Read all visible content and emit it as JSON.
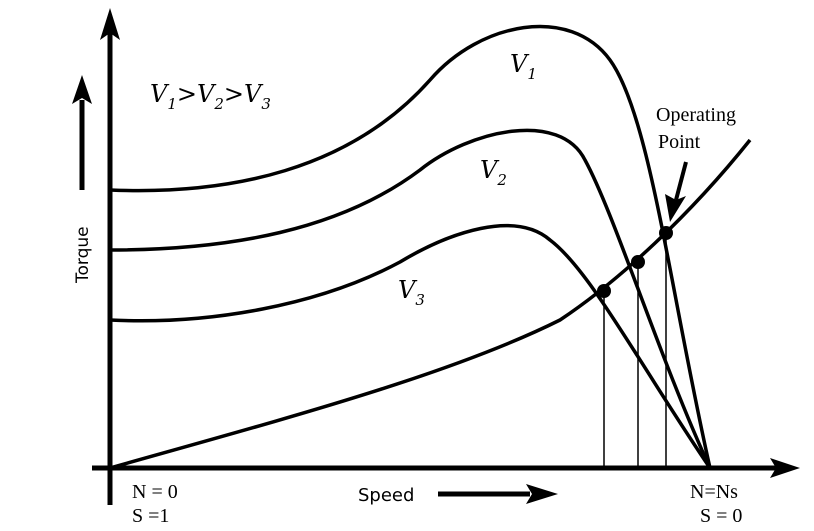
{
  "axes": {
    "y_label": "Torque",
    "x_label": "Speed"
  },
  "legend": {
    "relation": "V1>V2>V3",
    "parts": [
      {
        "base": "V",
        "sub": "1"
      },
      {
        "sep": ">"
      },
      {
        "base": "V",
        "sub": "2"
      },
      {
        "sep": ">"
      },
      {
        "base": "V",
        "sub": "3"
      }
    ]
  },
  "curve_labels": [
    {
      "id": "v1",
      "base": "V",
      "sub": "1"
    },
    {
      "id": "v2",
      "base": "V",
      "sub": "2"
    },
    {
      "id": "v3",
      "base": "V",
      "sub": "3"
    }
  ],
  "annotation": {
    "line1": "Operating",
    "line2": "Point"
  },
  "origin_labels": {
    "speed": "N = 0",
    "slip": "S =1"
  },
  "sync_labels": {
    "speed": "N=Ns",
    "slip": "S = 0"
  },
  "colors": {
    "ink": "#000000",
    "background": "#ffffff"
  }
}
